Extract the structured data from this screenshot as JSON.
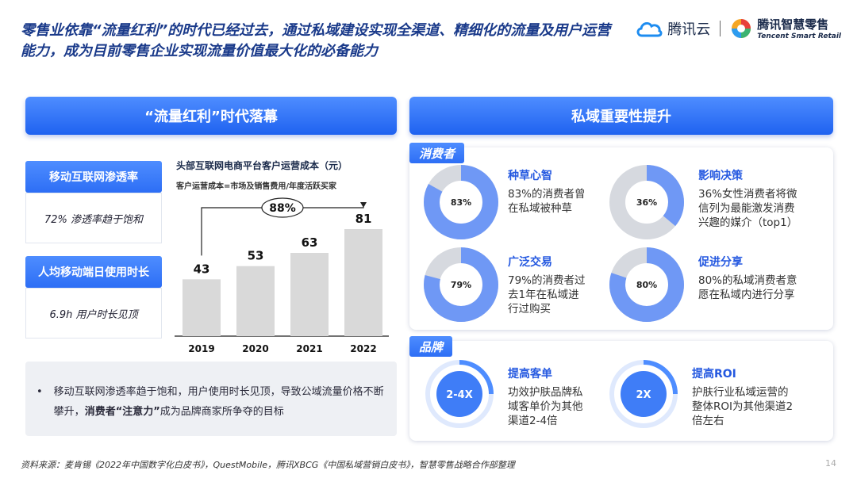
{
  "headline": "零售业依靠“流量红利”的时代已经过去，通过私域建设实现全渠道、精细化的流量及用户运营能力，成为目前零售企业实现流量价值最大化的必备能力",
  "logos": {
    "cloud": "腾讯云",
    "retail_cn": "腾讯智慧零售",
    "retail_en": "Tencent Smart Retail"
  },
  "left": {
    "banner": "“流量红利”时代落幕",
    "stats": [
      {
        "label": "移动互联网渗透率",
        "value": "72% 渗透率趋于饱和"
      },
      {
        "label": "人均移动端日使用时长",
        "value": "6.9h 用户时长见顶"
      }
    ],
    "chart_title": "头部互联网电商平台客户运营成本（元）",
    "chart_sub": "客户运营成本=市场及销售费用/年度活跃买家",
    "growth_label": "88%",
    "bullet_prefix": "移动互联网渗透率趋于饱和，用户使用时长见顶，导致公域流量价格不断攀升，",
    "bullet_bold": "消费者“注意力”",
    "bullet_suffix": "成为品牌商家所争夺的目标"
  },
  "right": {
    "banner": "私域重要性提升",
    "consumer_tag": "消费者",
    "brand_tag": "品牌",
    "consumer_items": [
      {
        "title": "种草心智",
        "pct": "83%",
        "value": 83,
        "desc": [
          "83%的消费者曾",
          "在私域被种草"
        ]
      },
      {
        "title": "影响决策",
        "pct": "36%",
        "value": 36,
        "desc": [
          "36%女性消费者将微",
          "信列为最能激发消费",
          "兴趣的媒介（top1）"
        ]
      },
      {
        "title": "广泛交易",
        "pct": "79%",
        "value": 79,
        "desc": [
          "79%的消费者过",
          "去1年在私域进",
          "行过购买"
        ]
      },
      {
        "title": "促进分享",
        "pct": "80%",
        "value": 80,
        "desc": [
          "80%的私域消费者意",
          "愿在私域内进行分享"
        ]
      }
    ],
    "brand_items": [
      {
        "title": "提高客单",
        "badge": "2-4X",
        "desc": [
          "功效护肤品牌私",
          "域客单价为其他",
          "渠道2-4倍"
        ]
      },
      {
        "title": "提高ROI",
        "badge": "2X",
        "desc": [
          "护肤行业私域运营的",
          "整体ROI为其他渠道2",
          "倍左右"
        ]
      }
    ]
  },
  "footer": "资料来源：麦肯锡《2022年中国数字化白皮书》，QuestMobile，腾讯XBCG《中国私域营销白皮书》，智慧零售战略合作部整理",
  "page": "14",
  "colors": {
    "primary": "#2d6ef5",
    "donut_fill": "#6f98f5",
    "donut_rest": "#d6d9df",
    "bar": "#d9d9d9"
  },
  "chart_data": {
    "type": "bar",
    "title": "头部互联网电商平台客户运营成本（元）",
    "categories": [
      "2019",
      "2020",
      "2021",
      "2022"
    ],
    "values": [
      43,
      53,
      63,
      81
    ],
    "annotation": "88%"
  }
}
